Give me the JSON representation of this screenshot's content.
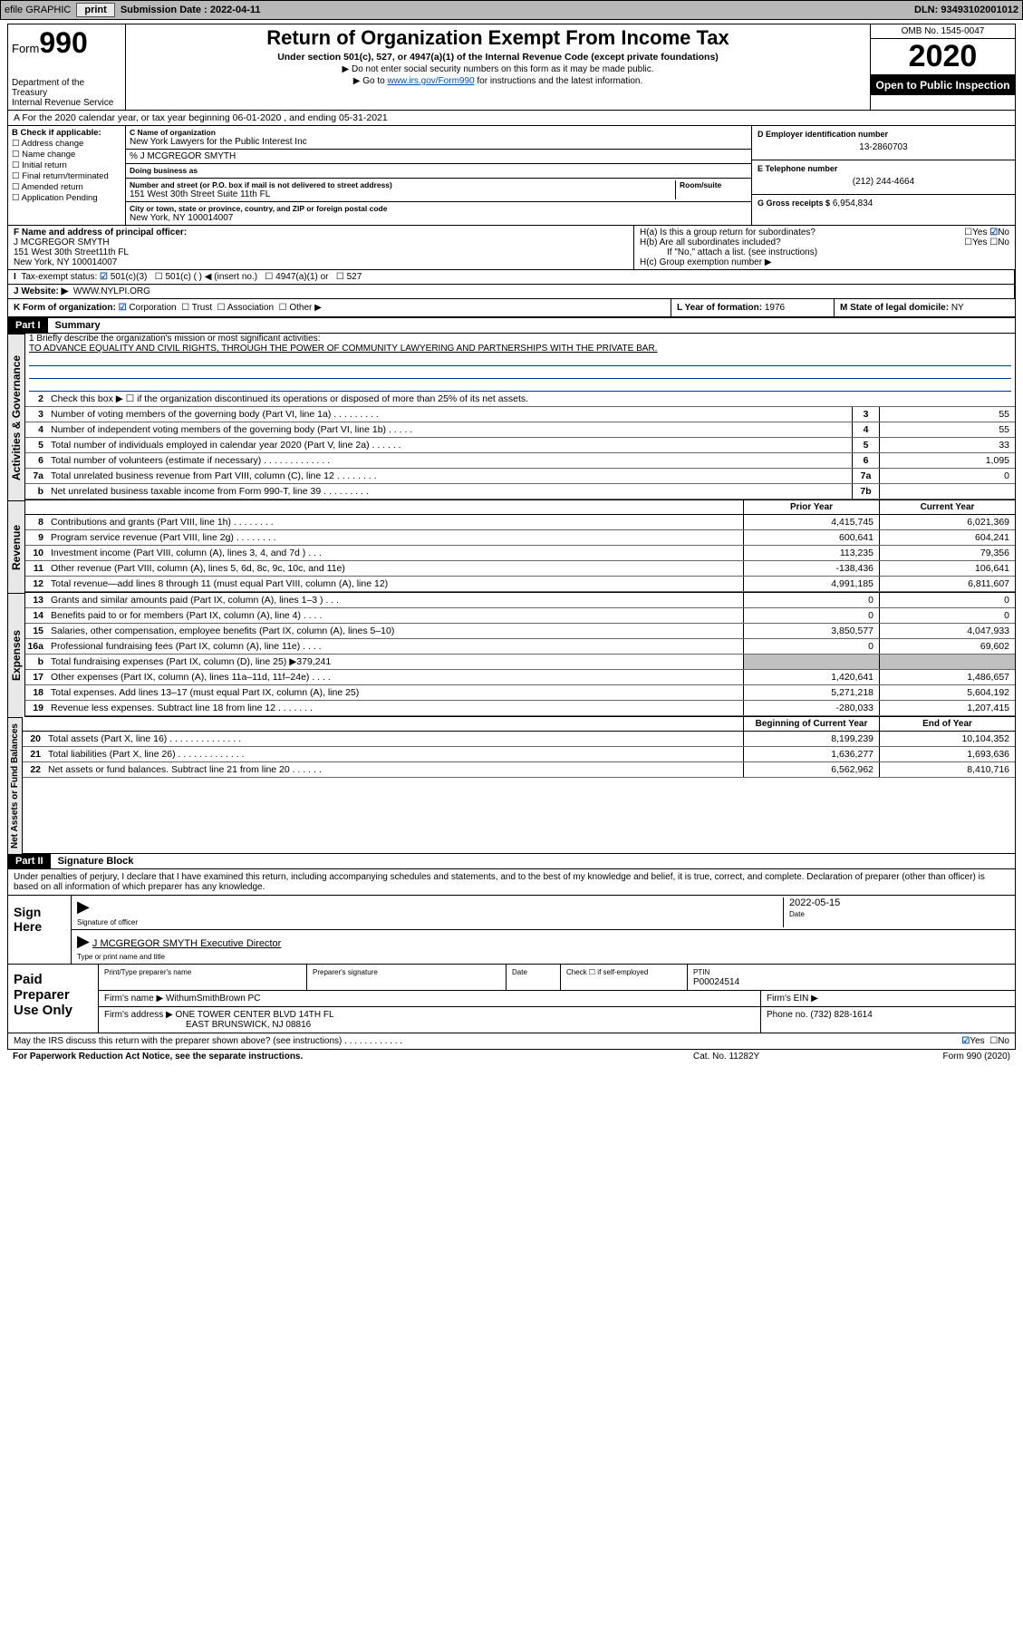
{
  "topbar": {
    "efile_label": "efile GRAPHIC",
    "print_btn": "print",
    "sub_label": "Submission Date : 2022-04-11",
    "dln": "DLN: 93493102001012"
  },
  "header": {
    "form_label": "Form",
    "form_num": "990",
    "dept": "Department of the Treasury",
    "irs": "Internal Revenue Service",
    "title": "Return of Organization Exempt From Income Tax",
    "subtitle": "Under section 501(c), 527, or 4947(a)(1) of the Internal Revenue Code (except private foundations)",
    "note1": "▶ Do not enter social security numbers on this form as it may be made public.",
    "note2_pre": "▶ Go to ",
    "note2_link": "www.irs.gov/Form990",
    "note2_post": " for instructions and the latest information.",
    "omb": "OMB No. 1545-0047",
    "year": "2020",
    "open": "Open to Public Inspection"
  },
  "rowA": "A For the 2020 calendar year, or tax year beginning 06-01-2020    , and ending 05-31-2021",
  "colB": {
    "title": "B Check if applicable:",
    "items": [
      "Address change",
      "Name change",
      "Initial return",
      "Final return/terminated",
      "Amended return",
      "Application Pending"
    ]
  },
  "colC": {
    "name_lbl": "C Name of organization",
    "name": "New York Lawyers for the Public Interest Inc",
    "care": "% J MCGREGOR SMYTH",
    "dba_lbl": "Doing business as",
    "addr_lbl": "Number and street (or P.O. box if mail is not delivered to street address)",
    "room_lbl": "Room/suite",
    "addr": "151 West 30th Street Suite 11th FL",
    "city_lbl": "City or town, state or province, country, and ZIP or foreign postal code",
    "city": "New York, NY  100014007"
  },
  "colD": {
    "ein_lbl": "D Employer identification number",
    "ein": "13-2860703",
    "tel_lbl": "E Telephone number",
    "tel": "(212) 244-4664",
    "gross_lbl": "G Gross receipts $",
    "gross": "6,954,834"
  },
  "rowF": {
    "lbl": "F Name and address of principal officer:",
    "name": "J MCGREGOR SMYTH",
    "addr1": "151 West 30th Street11th FL",
    "addr2": "New York, NY  100014007"
  },
  "rowH": {
    "ha": "H(a)  Is this a group return for subordinates?",
    "hb": "H(b)  Are all subordinates included?",
    "hb_note": "If \"No,\" attach a list. (see instructions)",
    "hc": "H(c)  Group exemption number ▶",
    "yes": "Yes",
    "no": "No"
  },
  "rowI": {
    "lbl": "Tax-exempt status:",
    "opts": [
      "501(c)(3)",
      "501(c) (  ) ◀ (insert no.)",
      "4947(a)(1) or",
      "527"
    ]
  },
  "rowJ": {
    "lbl": "J   Website: ▶",
    "val": "WWW.NYLPI.ORG"
  },
  "rowK": {
    "lbl": "K Form of organization:",
    "opts": [
      "Corporation",
      "Trust",
      "Association",
      "Other ▶"
    ],
    "L_lbl": "L Year of formation:",
    "L_val": "1976",
    "M_lbl": "M State of legal domicile:",
    "M_val": "NY"
  },
  "part1": {
    "title": "Part I",
    "name": "Summary"
  },
  "gov": {
    "q1_lbl": "1  Briefly describe the organization's mission or most significant activities:",
    "q1_val": "TO ADVANCE EQUALITY AND CIVIL RIGHTS, THROUGH THE POWER OF COMMUNITY LAWYERING AND PARTNERSHIPS WITH THE PRIVATE BAR.",
    "q2": "Check this box ▶ ☐  if the organization discontinued its operations or disposed of more than 25% of its net assets.",
    "lines": [
      {
        "n": "3",
        "d": "Number of voting members of the governing body (Part VI, line 1a)   .   .   .   .   .   .   .   .   .",
        "b": "3",
        "v": "55"
      },
      {
        "n": "4",
        "d": "Number of independent voting members of the governing body (Part VI, line 1b)   .   .   .   .   .",
        "b": "4",
        "v": "55"
      },
      {
        "n": "5",
        "d": "Total number of individuals employed in calendar year 2020 (Part V, line 2a)   .   .   .   .   .   .",
        "b": "5",
        "v": "33"
      },
      {
        "n": "6",
        "d": "Total number of volunteers (estimate if necessary)   .   .   .   .   .   .   .   .   .   .   .   .   .",
        "b": "6",
        "v": "1,095"
      },
      {
        "n": "7a",
        "d": "Total unrelated business revenue from Part VIII, column (C), line 12   .   .   .   .   .   .   .   .",
        "b": "7a",
        "v": "0"
      },
      {
        "n": "b",
        "d": "Net unrelated business taxable income from Form 990-T, line 39   .   .   .   .   .   .   .   .   .",
        "b": "7b",
        "v": ""
      }
    ]
  },
  "yearhdr": {
    "prior": "Prior Year",
    "current": "Current Year"
  },
  "rev": [
    {
      "n": "8",
      "d": "Contributions and grants (Part VIII, line 1h)   .   .   .   .   .   .   .   .",
      "p": "4,415,745",
      "c": "6,021,369"
    },
    {
      "n": "9",
      "d": "Program service revenue (Part VIII, line 2g)   .   .   .   .   .   .   .   .",
      "p": "600,641",
      "c": "604,241"
    },
    {
      "n": "10",
      "d": "Investment income (Part VIII, column (A), lines 3, 4, and 7d )   .   .   .",
      "p": "113,235",
      "c": "79,356"
    },
    {
      "n": "11",
      "d": "Other revenue (Part VIII, column (A), lines 5, 6d, 8c, 9c, 10c, and 11e)",
      "p": "-138,436",
      "c": "106,641"
    },
    {
      "n": "12",
      "d": "Total revenue—add lines 8 through 11 (must equal Part VIII, column (A), line 12)",
      "p": "4,991,185",
      "c": "6,811,607"
    }
  ],
  "exp": [
    {
      "n": "13",
      "d": "Grants and similar amounts paid (Part IX, column (A), lines 1–3 )   .   .   .",
      "p": "0",
      "c": "0"
    },
    {
      "n": "14",
      "d": "Benefits paid to or for members (Part IX, column (A), line 4)   .   .   .   .",
      "p": "0",
      "c": "0"
    },
    {
      "n": "15",
      "d": "Salaries, other compensation, employee benefits (Part IX, column (A), lines 5–10)",
      "p": "3,850,577",
      "c": "4,047,933"
    },
    {
      "n": "16a",
      "d": "Professional fundraising fees (Part IX, column (A), line 11e)   .   .   .   .",
      "p": "0",
      "c": "69,602"
    },
    {
      "n": "b",
      "d": "Total fundraising expenses (Part IX, column (D), line 25) ▶379,241",
      "p": "",
      "c": "",
      "grey": true
    },
    {
      "n": "17",
      "d": "Other expenses (Part IX, column (A), lines 11a–11d, 11f–24e)   .   .   .   .",
      "p": "1,420,641",
      "c": "1,486,657"
    },
    {
      "n": "18",
      "d": "Total expenses. Add lines 13–17 (must equal Part IX, column (A), line 25)",
      "p": "5,271,218",
      "c": "5,604,192"
    },
    {
      "n": "19",
      "d": "Revenue less expenses. Subtract line 18 from line 12   .   .   .   .   .   .   .",
      "p": "-280,033",
      "c": "1,207,415"
    }
  ],
  "nethdr": {
    "beg": "Beginning of Current Year",
    "end": "End of Year"
  },
  "net": [
    {
      "n": "20",
      "d": "Total assets (Part X, line 16)   .   .   .   .   .   .   .   .   .   .   .   .   .   .",
      "p": "8,199,239",
      "c": "10,104,352"
    },
    {
      "n": "21",
      "d": "Total liabilities (Part X, line 26)   .   .   .   .   .   .   .   .   .   .   .   .   .",
      "p": "1,636,277",
      "c": "1,693,636"
    },
    {
      "n": "22",
      "d": "Net assets or fund balances. Subtract line 21 from line 20   .   .   .   .   .   .",
      "p": "6,562,962",
      "c": "8,410,716"
    }
  ],
  "part2": {
    "title": "Part II",
    "name": "Signature Block"
  },
  "sig": {
    "decl": "Under penalties of perjury, I declare that I have examined this return, including accompanying schedules and statements, and to the best of my knowledge and belief, it is true, correct, and complete. Declaration of preparer (other than officer) is based on all information of which preparer has any knowledge.",
    "sign_here": "Sign Here",
    "officer_lbl": "Signature of officer",
    "date_lbl": "Date",
    "date_val": "2022-05-15",
    "name_title": "J MCGREGOR SMYTH  Executive Director",
    "name_title_lbl": "Type or print name and title"
  },
  "prep": {
    "lbl": "Paid Preparer Use Only",
    "h1": "Print/Type preparer's name",
    "h2": "Preparer's signature",
    "h3": "Date",
    "h4_pre": "Check ☐ if self-employed",
    "h5_lbl": "PTIN",
    "h5_val": "P00024514",
    "firm_name_lbl": "Firm's name   ▶",
    "firm_name": "WithumSmithBrown PC",
    "firm_ein_lbl": "Firm's EIN ▶",
    "firm_addr_lbl": "Firm's address ▶",
    "firm_addr1": "ONE TOWER CENTER BLVD 14TH FL",
    "firm_addr2": "EAST BRUNSWICK, NJ  08816",
    "phone_lbl": "Phone no.",
    "phone": "(732) 828-1614"
  },
  "discuss": "May the IRS discuss this return with the preparer shown above? (see instructions)   .   .   .   .   .   .   .   .   .   .   .   .",
  "footer": {
    "pra": "For Paperwork Reduction Act Notice, see the separate instructions.",
    "cat": "Cat. No. 11282Y",
    "form": "Form 990 (2020)"
  },
  "sidelabels": {
    "gov": "Activities & Governance",
    "rev": "Revenue",
    "exp": "Expenses",
    "net": "Net Assets or Fund Balances"
  }
}
